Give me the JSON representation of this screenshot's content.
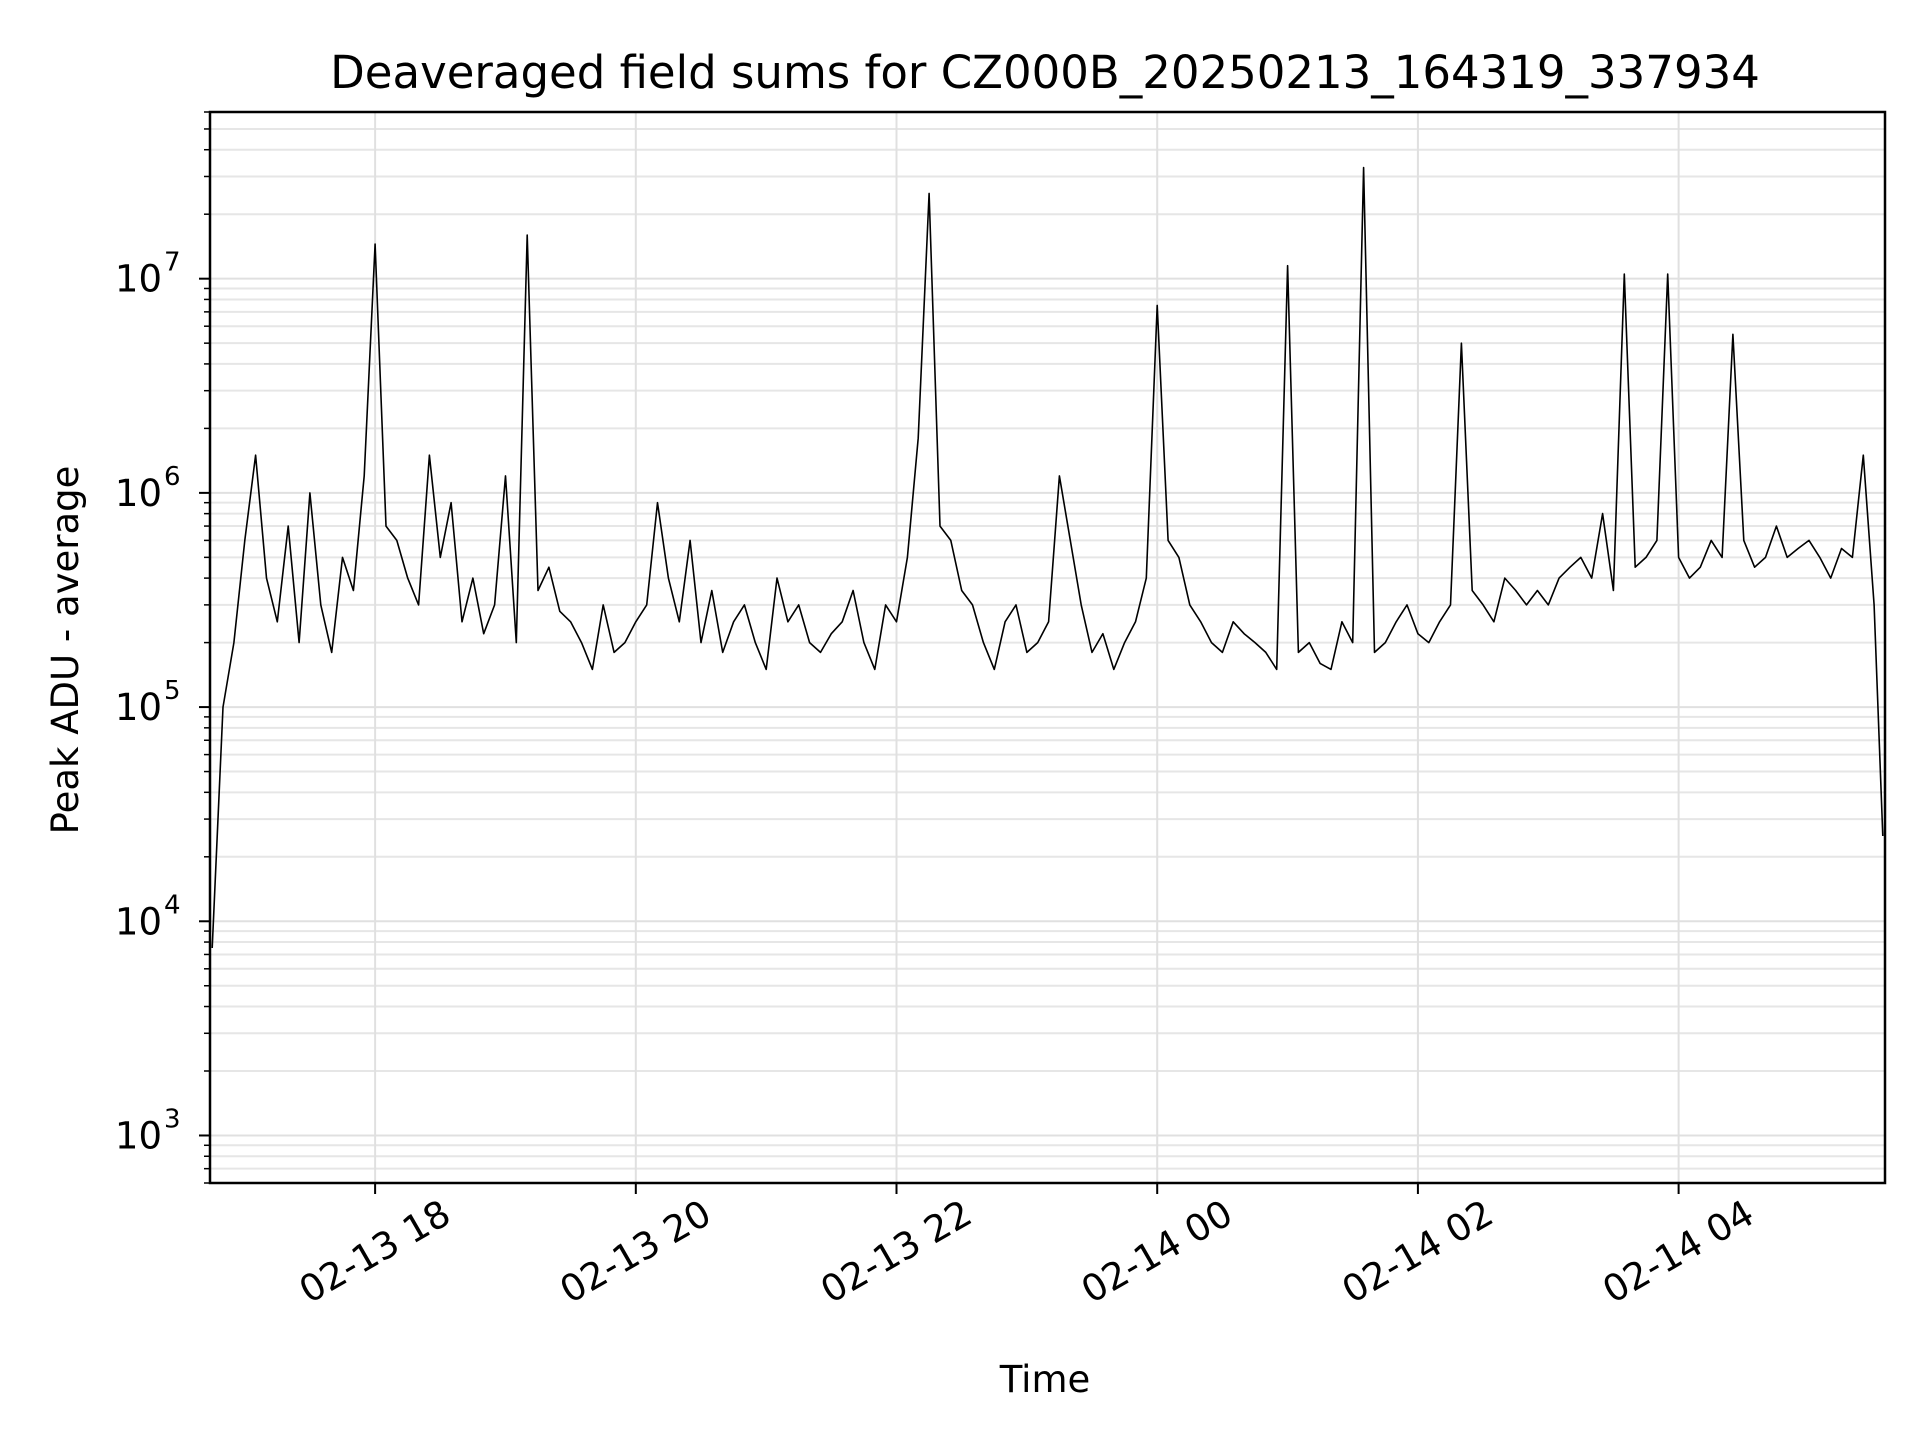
{
  "chart_data": {
    "type": "line",
    "title": "Deaveraged field sums for CZ000B_20250213_164319_337934",
    "xlabel": "Time",
    "ylabel": "Peak ADU - average",
    "yscale": "log",
    "ylim": [
      600,
      60000000
    ],
    "xlim": [
      "2025-02-13 16:44",
      "2025-02-14 05:35"
    ],
    "x_ticks": [
      {
        "t": "2025-02-13 18:00",
        "label": "02-13 18"
      },
      {
        "t": "2025-02-13 20:00",
        "label": "02-13 20"
      },
      {
        "t": "2025-02-13 22:00",
        "label": "02-13 22"
      },
      {
        "t": "2025-02-14 00:00",
        "label": "02-14 00"
      },
      {
        "t": "2025-02-14 02:00",
        "label": "02-14 02"
      },
      {
        "t": "2025-02-14 04:00",
        "label": "02-14 04"
      }
    ],
    "y_ticks": [
      {
        "value": 1000,
        "base": "10",
        "exp": "3"
      },
      {
        "value": 10000,
        "base": "10",
        "exp": "4"
      },
      {
        "value": 100000,
        "base": "10",
        "exp": "5"
      },
      {
        "value": 1000000,
        "base": "10",
        "exp": "6"
      },
      {
        "value": 10000000,
        "base": "10",
        "exp": "7"
      }
    ],
    "grid": true,
    "line_color": "#000000",
    "series": [
      {
        "x": [
          "2025-02-13 16:45",
          "2025-02-13 16:50",
          "2025-02-13 16:55",
          "2025-02-13 17:00",
          "2025-02-13 17:05",
          "2025-02-13 17:10",
          "2025-02-13 17:15",
          "2025-02-13 17:20",
          "2025-02-13 17:25",
          "2025-02-13 17:30",
          "2025-02-13 17:35",
          "2025-02-13 17:40",
          "2025-02-13 17:45",
          "2025-02-13 17:50",
          "2025-02-13 17:55",
          "2025-02-13 18:00",
          "2025-02-13 18:05",
          "2025-02-13 18:10",
          "2025-02-13 18:15",
          "2025-02-13 18:20",
          "2025-02-13 18:25",
          "2025-02-13 18:30",
          "2025-02-13 18:35",
          "2025-02-13 18:40",
          "2025-02-13 18:45",
          "2025-02-13 18:50",
          "2025-02-13 18:55",
          "2025-02-13 19:00",
          "2025-02-13 19:05",
          "2025-02-13 19:10",
          "2025-02-13 19:15",
          "2025-02-13 19:20",
          "2025-02-13 19:25",
          "2025-02-13 19:30",
          "2025-02-13 19:35",
          "2025-02-13 19:40",
          "2025-02-13 19:45",
          "2025-02-13 19:50",
          "2025-02-13 19:55",
          "2025-02-13 20:00",
          "2025-02-13 20:05",
          "2025-02-13 20:10",
          "2025-02-13 20:15",
          "2025-02-13 20:20",
          "2025-02-13 20:25",
          "2025-02-13 20:30",
          "2025-02-13 20:35",
          "2025-02-13 20:40",
          "2025-02-13 20:45",
          "2025-02-13 20:50",
          "2025-02-13 20:55",
          "2025-02-13 21:00",
          "2025-02-13 21:05",
          "2025-02-13 21:10",
          "2025-02-13 21:15",
          "2025-02-13 21:20",
          "2025-02-13 21:25",
          "2025-02-13 21:30",
          "2025-02-13 21:35",
          "2025-02-13 21:40",
          "2025-02-13 21:45",
          "2025-02-13 21:50",
          "2025-02-13 21:55",
          "2025-02-13 22:00",
          "2025-02-13 22:05",
          "2025-02-13 22:10",
          "2025-02-13 22:15",
          "2025-02-13 22:20",
          "2025-02-13 22:25",
          "2025-02-13 22:30",
          "2025-02-13 22:35",
          "2025-02-13 22:40",
          "2025-02-13 22:45",
          "2025-02-13 22:50",
          "2025-02-13 22:55",
          "2025-02-13 23:00",
          "2025-02-13 23:05",
          "2025-02-13 23:10",
          "2025-02-13 23:15",
          "2025-02-13 23:20",
          "2025-02-13 23:25",
          "2025-02-13 23:30",
          "2025-02-13 23:35",
          "2025-02-13 23:40",
          "2025-02-13 23:45",
          "2025-02-13 23:50",
          "2025-02-13 23:55",
          "2025-02-14 00:00",
          "2025-02-14 00:05",
          "2025-02-14 00:10",
          "2025-02-14 00:15",
          "2025-02-14 00:20",
          "2025-02-14 00:25",
          "2025-02-14 00:30",
          "2025-02-14 00:35",
          "2025-02-14 00:40",
          "2025-02-14 00:45",
          "2025-02-14 00:50",
          "2025-02-14 00:55",
          "2025-02-14 01:00",
          "2025-02-14 01:05",
          "2025-02-14 01:10",
          "2025-02-14 01:15",
          "2025-02-14 01:20",
          "2025-02-14 01:25",
          "2025-02-14 01:30",
          "2025-02-14 01:35",
          "2025-02-14 01:40",
          "2025-02-14 01:45",
          "2025-02-14 01:50",
          "2025-02-14 01:55",
          "2025-02-14 02:00",
          "2025-02-14 02:05",
          "2025-02-14 02:10",
          "2025-02-14 02:15",
          "2025-02-14 02:20",
          "2025-02-14 02:25",
          "2025-02-14 02:30",
          "2025-02-14 02:35",
          "2025-02-14 02:40",
          "2025-02-14 02:45",
          "2025-02-14 02:50",
          "2025-02-14 02:55",
          "2025-02-14 03:00",
          "2025-02-14 03:05",
          "2025-02-14 03:10",
          "2025-02-14 03:15",
          "2025-02-14 03:20",
          "2025-02-14 03:25",
          "2025-02-14 03:30",
          "2025-02-14 03:35",
          "2025-02-14 03:40",
          "2025-02-14 03:45",
          "2025-02-14 03:50",
          "2025-02-14 03:55",
          "2025-02-14 04:00",
          "2025-02-14 04:05",
          "2025-02-14 04:10",
          "2025-02-14 04:15",
          "2025-02-14 04:20",
          "2025-02-14 04:25",
          "2025-02-14 04:30",
          "2025-02-14 04:35",
          "2025-02-14 04:40",
          "2025-02-14 04:45",
          "2025-02-14 04:50",
          "2025-02-14 04:55",
          "2025-02-14 05:00",
          "2025-02-14 05:05",
          "2025-02-14 05:10",
          "2025-02-14 05:15",
          "2025-02-14 05:20",
          "2025-02-14 05:25",
          "2025-02-14 05:30",
          "2025-02-14 05:34"
        ],
        "y": [
          7500,
          100000,
          200000,
          600000,
          1500000,
          400000,
          250000,
          700000,
          200000,
          1000000,
          300000,
          180000,
          500000,
          350000,
          1200000,
          14500000,
          700000,
          600000,
          400000,
          300000,
          1500000,
          500000,
          900000,
          250000,
          400000,
          220000,
          300000,
          1200000,
          200000,
          16000000,
          350000,
          450000,
          280000,
          250000,
          200000,
          150000,
          300000,
          180000,
          200000,
          250000,
          300000,
          900000,
          400000,
          250000,
          600000,
          200000,
          350000,
          180000,
          250000,
          300000,
          200000,
          150000,
          400000,
          250000,
          300000,
          200000,
          180000,
          220000,
          250000,
          350000,
          200000,
          150000,
          300000,
          250000,
          500000,
          1800000,
          25000000,
          700000,
          600000,
          350000,
          300000,
          200000,
          150000,
          250000,
          300000,
          180000,
          200000,
          250000,
          1200000,
          600000,
          300000,
          180000,
          220000,
          150000,
          200000,
          250000,
          400000,
          7500000,
          600000,
          500000,
          300000,
          250000,
          200000,
          180000,
          250000,
          220000,
          200000,
          180000,
          150000,
          11500000,
          180000,
          200000,
          160000,
          150000,
          250000,
          200000,
          33000000,
          180000,
          200000,
          250000,
          300000,
          220000,
          200000,
          250000,
          300000,
          5000000,
          350000,
          300000,
          250000,
          400000,
          350000,
          300000,
          350000,
          300000,
          400000,
          450000,
          500000,
          400000,
          800000,
          350000,
          10500000,
          450000,
          500000,
          600000,
          10500000,
          500000,
          400000,
          450000,
          600000,
          500000,
          5500000,
          600000,
          450000,
          500000,
          700000,
          500000,
          550000,
          600000,
          500000,
          400000,
          550000,
          500000,
          1500000,
          300000,
          25000
        ]
      }
    ]
  }
}
